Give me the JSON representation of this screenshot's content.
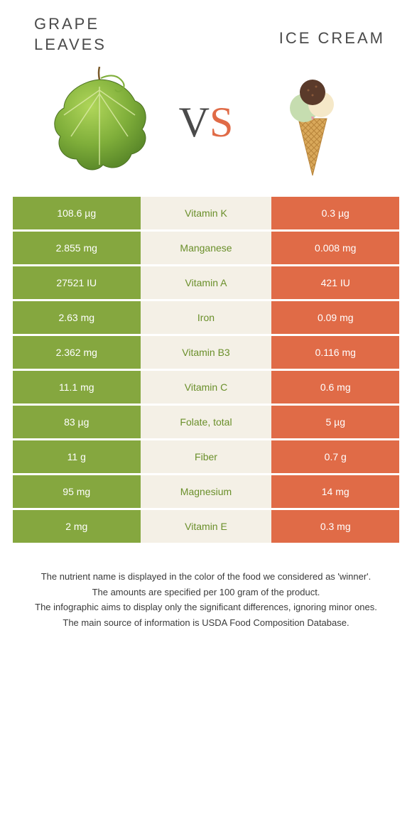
{
  "title_left": "GRAPE\nLEAVES",
  "title_right": "ICE CREAM",
  "vs_v": "V",
  "vs_s": "S",
  "colors": {
    "left_bg": "#85a73f",
    "right_bg": "#e06b47",
    "mid_bg": "#f4f0e6",
    "green_text": "#6a8f2a",
    "orange_text": "#d35a36",
    "title_text": "#4a4a4a"
  },
  "rows": [
    {
      "left": "108.6 µg",
      "label": "Vitamin K",
      "right": "0.3 µg",
      "winner": "green"
    },
    {
      "left": "2.855 mg",
      "label": "Manganese",
      "right": "0.008 mg",
      "winner": "green"
    },
    {
      "left": "27521 IU",
      "label": "Vitamin A",
      "right": "421 IU",
      "winner": "green"
    },
    {
      "left": "2.63 mg",
      "label": "Iron",
      "right": "0.09 mg",
      "winner": "green"
    },
    {
      "left": "2.362 mg",
      "label": "Vitamin B3",
      "right": "0.116 mg",
      "winner": "green"
    },
    {
      "left": "11.1 mg",
      "label": "Vitamin C",
      "right": "0.6 mg",
      "winner": "green"
    },
    {
      "left": "83 µg",
      "label": "Folate, total",
      "right": "5 µg",
      "winner": "green"
    },
    {
      "left": "11 g",
      "label": "Fiber",
      "right": "0.7 g",
      "winner": "green"
    },
    {
      "left": "95 mg",
      "label": "Magnesium",
      "right": "14 mg",
      "winner": "green"
    },
    {
      "left": "2 mg",
      "label": "Vitamin E",
      "right": "0.3 mg",
      "winner": "green"
    }
  ],
  "footnotes": [
    "The nutrient name is displayed in the color of the food we considered as 'winner'.",
    "The amounts are specified per 100 gram of the product.",
    "The infographic aims to display only the significant differences, ignoring minor ones.",
    "The main source of information is USDA Food Composition Database."
  ]
}
